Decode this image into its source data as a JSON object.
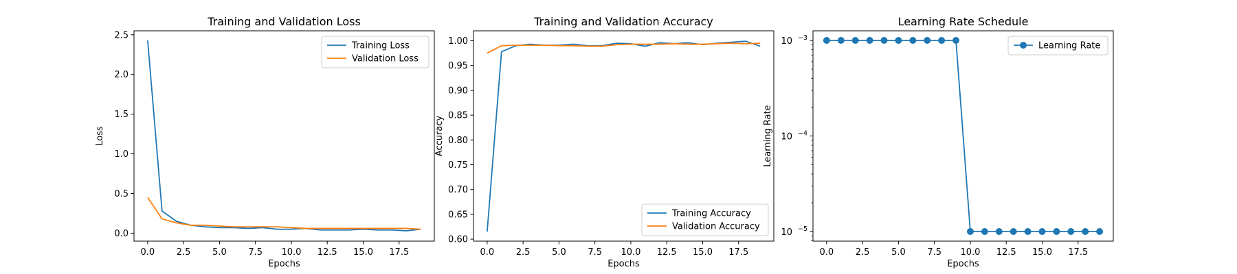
{
  "colors": {
    "blue": "#1f77b4",
    "orange": "#ff7f0e"
  },
  "chart_data": [
    {
      "type": "line",
      "title": "Training and Validation Loss",
      "xlabel": "Epochs",
      "ylabel": "Loss",
      "xlim": [
        -0.95,
        19.95
      ],
      "ylim": [
        -0.1,
        2.55
      ],
      "xticks": [
        0.0,
        2.5,
        5.0,
        7.5,
        10.0,
        12.5,
        15.0,
        17.5
      ],
      "xtick_labels": [
        "0.0",
        "2.5",
        "5.0",
        "7.5",
        "10.0",
        "12.5",
        "15.0",
        "17.5"
      ],
      "yticks": [
        0.0,
        0.5,
        1.0,
        1.5,
        2.0,
        2.5
      ],
      "ytick_labels": [
        "0.0",
        "0.5",
        "1.0",
        "1.5",
        "2.0",
        "2.5"
      ],
      "legend_position": "top-right",
      "x": [
        0,
        1,
        2,
        3,
        4,
        5,
        6,
        7,
        8,
        9,
        10,
        11,
        12,
        13,
        14,
        15,
        16,
        17,
        18,
        19
      ],
      "series": [
        {
          "name": "Training Loss",
          "color": "#1f77b4",
          "values": [
            2.43,
            0.28,
            0.15,
            0.1,
            0.08,
            0.07,
            0.07,
            0.06,
            0.07,
            0.05,
            0.05,
            0.06,
            0.04,
            0.04,
            0.04,
            0.05,
            0.04,
            0.04,
            0.03,
            0.05
          ]
        },
        {
          "name": "Validation Loss",
          "color": "#ff7f0e",
          "values": [
            0.45,
            0.18,
            0.13,
            0.1,
            0.1,
            0.09,
            0.08,
            0.08,
            0.08,
            0.08,
            0.07,
            0.06,
            0.06,
            0.06,
            0.06,
            0.06,
            0.06,
            0.06,
            0.06,
            0.05
          ]
        }
      ]
    },
    {
      "type": "line",
      "title": "Training and Validation Accuracy",
      "xlabel": "Epochs",
      "ylabel": "Accuracy",
      "xlim": [
        -0.95,
        19.95
      ],
      "ylim": [
        0.596,
        1.02
      ],
      "xticks": [
        0.0,
        2.5,
        5.0,
        7.5,
        10.0,
        12.5,
        15.0,
        17.5
      ],
      "xtick_labels": [
        "0.0",
        "2.5",
        "5.0",
        "7.5",
        "10.0",
        "12.5",
        "15.0",
        "17.5"
      ],
      "yticks": [
        0.6,
        0.65,
        0.7,
        0.75,
        0.8,
        0.85,
        0.9,
        0.95,
        1.0
      ],
      "ytick_labels": [
        "0.60",
        "0.65",
        "0.70",
        "0.75",
        "0.80",
        "0.85",
        "0.90",
        "0.95",
        "1.00"
      ],
      "legend_position": "lower-right",
      "x": [
        0,
        1,
        2,
        3,
        4,
        5,
        6,
        7,
        8,
        9,
        10,
        11,
        12,
        13,
        14,
        15,
        16,
        17,
        18,
        19
      ],
      "series": [
        {
          "name": "Training Accuracy",
          "color": "#1f77b4",
          "values": [
            0.615,
            0.978,
            0.99,
            0.993,
            0.991,
            0.991,
            0.993,
            0.99,
            0.99,
            0.995,
            0.994,
            0.989,
            0.996,
            0.994,
            0.996,
            0.992,
            0.995,
            0.997,
            0.999,
            0.989
          ]
        },
        {
          "name": "Validation Accuracy",
          "color": "#ff7f0e",
          "values": [
            0.975,
            0.99,
            0.991,
            0.991,
            0.991,
            0.99,
            0.99,
            0.989,
            0.989,
            0.992,
            0.993,
            0.993,
            0.993,
            0.994,
            0.993,
            0.993,
            0.994,
            0.995,
            0.994,
            0.995
          ]
        }
      ]
    },
    {
      "type": "line",
      "title": "Learning Rate Schedule",
      "xlabel": "Epochs",
      "ylabel": "Learning Rate",
      "yscale": "log",
      "xlim": [
        -0.95,
        19.95
      ],
      "ylim": [
        7.94e-06,
        0.00126
      ],
      "xticks": [
        0.0,
        2.5,
        5.0,
        7.5,
        10.0,
        12.5,
        15.0,
        17.5
      ],
      "xtick_labels": [
        "0.0",
        "2.5",
        "5.0",
        "7.5",
        "10.0",
        "12.5",
        "15.0",
        "17.5"
      ],
      "yticks": [
        1e-05,
        0.0001,
        0.001
      ],
      "ytick_labels": [
        {
          "base": "10",
          "exp": "−5"
        },
        {
          "base": "10",
          "exp": "−4"
        },
        {
          "base": "10",
          "exp": "−3"
        }
      ],
      "legend_position": "top-right",
      "markers": true,
      "x": [
        0,
        1,
        2,
        3,
        4,
        5,
        6,
        7,
        8,
        9,
        10,
        11,
        12,
        13,
        14,
        15,
        16,
        17,
        18,
        19
      ],
      "series": [
        {
          "name": "Learning Rate",
          "color": "#1f77b4",
          "values": [
            0.001,
            0.001,
            0.001,
            0.001,
            0.001,
            0.001,
            0.001,
            0.001,
            0.001,
            0.001,
            1e-05,
            1e-05,
            1e-05,
            1e-05,
            1e-05,
            1e-05,
            1e-05,
            1e-05,
            1e-05,
            1e-05
          ]
        }
      ]
    }
  ]
}
